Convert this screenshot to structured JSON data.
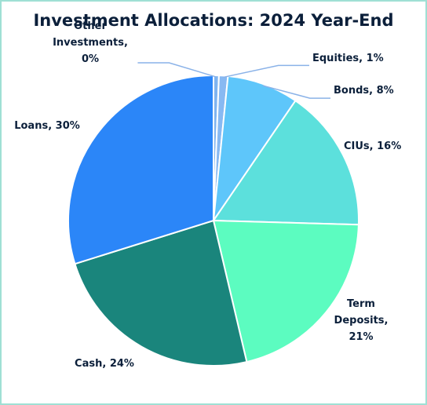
{
  "chart_data": {
    "type": "pie",
    "title": "Investment Allocations: 2024 Year-End",
    "slices": [
      {
        "name": "Other Investments",
        "value": 0,
        "label_lines": [
          "Other",
          "Investments,",
          "0%"
        ],
        "color": "#7fb4f0"
      },
      {
        "name": "Equities",
        "value": 1,
        "label_lines": [
          "Equities, 1%"
        ],
        "color": "#88b9f2"
      },
      {
        "name": "Bonds",
        "value": 8,
        "label_lines": [
          "Bonds, 8%"
        ],
        "color": "#5ec6fa"
      },
      {
        "name": "CIUs",
        "value": 16,
        "label_lines": [
          "CIUs, 16%"
        ],
        "color": "#5ce0dc"
      },
      {
        "name": "Term Deposits",
        "value": 21,
        "label_lines": [
          "Term",
          "Deposits,",
          "21%"
        ],
        "color": "#5cfcc0"
      },
      {
        "name": "Cash",
        "value": 24,
        "label_lines": [
          "Cash, 24%"
        ],
        "color": "#1a857c"
      },
      {
        "name": "Loans",
        "value": 30,
        "label_lines": [
          "Loans, 30%"
        ],
        "color": "#2b86f8"
      }
    ]
  }
}
